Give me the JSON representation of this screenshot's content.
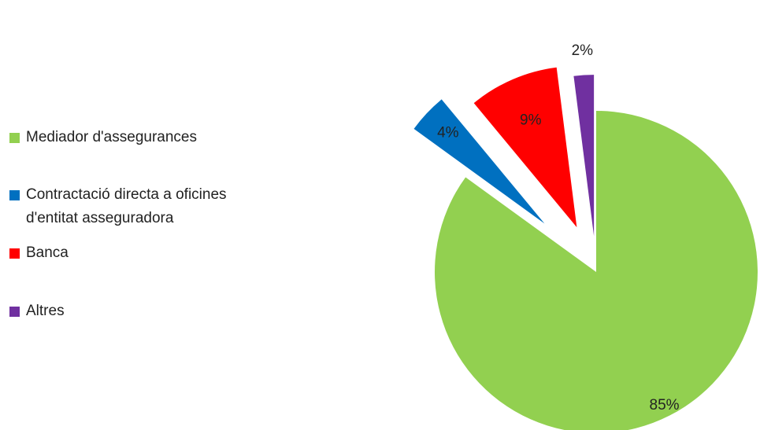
{
  "chart_data": {
    "type": "pie",
    "exploded": true,
    "legend_position": "left",
    "series": [
      {
        "name": "",
        "slices": [
          {
            "label": "Mediador d'assegurances",
            "label_lines": [
              "Mediador d'assegurances"
            ],
            "value": 85,
            "value_label": "85%",
            "color": "#92d050"
          },
          {
            "label": "Contractació directa a oficines d'entitat asseguradora",
            "label_lines": [
              "Contractació directa a oficines",
              "d'entitat asseguradora"
            ],
            "value": 4,
            "value_label": "4%",
            "color": "#0070c0"
          },
          {
            "label": "Banca",
            "label_lines": [
              "Banca"
            ],
            "value": 9,
            "value_label": "9%",
            "color": "#ff0000"
          },
          {
            "label": "Altres",
            "label_lines": [
              "Altres"
            ],
            "value": 2,
            "value_label": "2%",
            "color": "#7030a0"
          }
        ]
      }
    ]
  }
}
